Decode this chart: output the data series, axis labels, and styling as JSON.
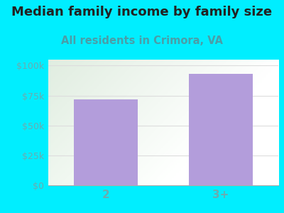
{
  "categories": [
    "2",
    "3+"
  ],
  "values": [
    72000,
    93000
  ],
  "bar_color": "#b39ddb",
  "title": "Median family income by family size",
  "subtitle": "All residents in Crimora, VA",
  "title_fontsize": 13,
  "subtitle_fontsize": 10.5,
  "ylim": [
    0,
    105000
  ],
  "yticks": [
    0,
    25000,
    50000,
    75000,
    100000
  ],
  "ytick_labels": [
    "$0",
    "$25k",
    "$50k",
    "$75k",
    "$100k"
  ],
  "background_color": "#00eeff",
  "tick_color": "#6aacb0",
  "title_color": "#222222",
  "subtitle_color": "#4a9ea8",
  "grid_color": "#dddddd",
  "bar_width": 0.55
}
